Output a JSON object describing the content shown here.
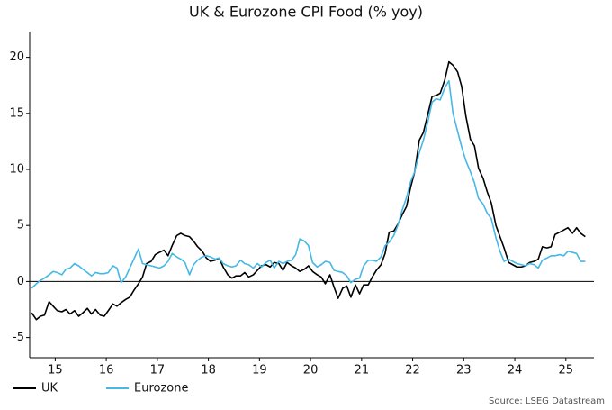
{
  "chart_data": {
    "type": "line",
    "title": "UK & Eurozone CPI Food (% yoy)",
    "source": "Source: LSEG Datastream",
    "xlim": [
      15,
      26.05
    ],
    "ylim": [
      -6.8,
      22.3
    ],
    "xticks": [
      {
        "value": 15.5,
        "label": "15"
      },
      {
        "value": 16.5,
        "label": "16"
      },
      {
        "value": 17.5,
        "label": "17"
      },
      {
        "value": 18.5,
        "label": "18"
      },
      {
        "value": 19.5,
        "label": "19"
      },
      {
        "value": 20.5,
        "label": "20"
      },
      {
        "value": 21.5,
        "label": "21"
      },
      {
        "value": 22.5,
        "label": "22"
      },
      {
        "value": 23.5,
        "label": "23"
      },
      {
        "value": 24.5,
        "label": "24"
      },
      {
        "value": 25.5,
        "label": "25"
      }
    ],
    "yticks": [
      -5,
      0,
      5,
      10,
      15,
      20
    ],
    "x": [
      15.04,
      15.13,
      15.21,
      15.29,
      15.38,
      15.46,
      15.54,
      15.63,
      15.71,
      15.79,
      15.88,
      15.96,
      16.04,
      16.13,
      16.21,
      16.29,
      16.38,
      16.46,
      16.54,
      16.63,
      16.71,
      16.79,
      16.88,
      16.96,
      17.04,
      17.13,
      17.21,
      17.29,
      17.38,
      17.46,
      17.54,
      17.63,
      17.71,
      17.79,
      17.88,
      17.96,
      18.04,
      18.13,
      18.21,
      18.29,
      18.38,
      18.46,
      18.54,
      18.63,
      18.71,
      18.79,
      18.88,
      18.96,
      19.04,
      19.13,
      19.21,
      19.29,
      19.38,
      19.46,
      19.54,
      19.63,
      19.71,
      19.79,
      19.88,
      19.96,
      20.04,
      20.13,
      20.21,
      20.29,
      20.38,
      20.46,
      20.54,
      20.63,
      20.71,
      20.79,
      20.88,
      20.96,
      21.04,
      21.13,
      21.21,
      21.29,
      21.38,
      21.46,
      21.54,
      21.63,
      21.71,
      21.79,
      21.88,
      21.96,
      22.04,
      22.13,
      22.21,
      22.29,
      22.38,
      22.46,
      22.54,
      22.63,
      22.71,
      22.79,
      22.88,
      22.96,
      23.04,
      23.13,
      23.21,
      23.29,
      23.38,
      23.46,
      23.54,
      23.63,
      23.71,
      23.79,
      23.88,
      23.96,
      24.04,
      24.13,
      24.21,
      24.29,
      24.38,
      24.46,
      24.54,
      24.63,
      24.71,
      24.79,
      24.88,
      24.96,
      25.04,
      25.13,
      25.21,
      25.29,
      25.38,
      25.46,
      25.54,
      25.63,
      25.71,
      25.79,
      25.88
    ],
    "series": [
      {
        "name": "UK",
        "color": "#000000",
        "values": [
          -2.8,
          -3.4,
          -3.1,
          -3.0,
          -1.8,
          -2.2,
          -2.6,
          -2.7,
          -2.5,
          -2.9,
          -2.6,
          -3.1,
          -2.8,
          -2.4,
          -2.9,
          -2.5,
          -3.0,
          -3.1,
          -2.6,
          -2.0,
          -2.2,
          -1.9,
          -1.6,
          -1.4,
          -0.8,
          -0.2,
          0.4,
          1.6,
          1.8,
          2.4,
          2.6,
          2.8,
          2.3,
          3.2,
          4.1,
          4.3,
          4.1,
          4.0,
          3.6,
          3.1,
          2.7,
          2.1,
          1.8,
          1.9,
          2.1,
          1.3,
          0.6,
          0.3,
          0.5,
          0.5,
          0.8,
          0.4,
          0.6,
          1.0,
          1.4,
          1.5,
          1.3,
          1.7,
          1.6,
          1.0,
          1.7,
          1.4,
          1.2,
          0.9,
          1.1,
          1.4,
          0.9,
          0.6,
          0.4,
          -0.2,
          0.6,
          -0.5,
          -1.5,
          -0.6,
          -0.4,
          -1.4,
          -0.3,
          -1.1,
          -0.3,
          -0.3,
          0.4,
          1.0,
          1.5,
          2.5,
          4.4,
          4.5,
          5.1,
          5.9,
          6.7,
          8.4,
          9.8,
          12.6,
          13.3,
          14.8,
          16.5,
          16.6,
          16.8,
          18.0,
          19.6,
          19.3,
          18.7,
          17.4,
          14.8,
          12.7,
          12.1,
          10.1,
          9.2,
          8.0,
          7.0,
          5.0,
          4.0,
          3.0,
          1.7,
          1.5,
          1.3,
          1.3,
          1.4,
          1.7,
          1.8,
          2.0,
          3.1,
          3.0,
          3.1,
          4.2,
          4.4,
          4.6,
          4.8,
          4.3,
          4.8,
          4.3,
          4.0
        ]
      },
      {
        "name": "Eurozone",
        "color": "#45b8e6",
        "values": [
          -0.6,
          -0.2,
          0.1,
          0.3,
          0.6,
          0.9,
          0.8,
          0.6,
          1.1,
          1.2,
          1.6,
          1.4,
          1.1,
          0.8,
          0.5,
          0.8,
          0.7,
          0.7,
          0.8,
          1.4,
          1.2,
          -0.1,
          0.4,
          1.2,
          2.0,
          2.9,
          1.6,
          1.5,
          1.4,
          1.3,
          1.2,
          1.4,
          1.8,
          2.5,
          2.2,
          2.0,
          1.7,
          0.6,
          1.5,
          1.9,
          2.2,
          2.3,
          2.2,
          2.0,
          2.1,
          1.6,
          1.4,
          1.3,
          1.4,
          1.9,
          1.6,
          1.5,
          1.2,
          1.6,
          1.3,
          1.7,
          1.9,
          1.2,
          1.8,
          1.6,
          1.8,
          1.9,
          2.4,
          3.8,
          3.6,
          3.2,
          1.7,
          1.3,
          1.5,
          1.8,
          1.7,
          1.0,
          0.9,
          0.8,
          0.5,
          -0.1,
          0.2,
          0.3,
          1.4,
          1.9,
          1.9,
          1.8,
          2.2,
          3.2,
          3.5,
          4.1,
          5.0,
          6.3,
          7.5,
          8.9,
          9.8,
          11.5,
          12.6,
          14.1,
          16.0,
          16.3,
          16.2,
          17.3,
          17.9,
          15.0,
          13.4,
          12.0,
          10.8,
          9.8,
          8.8,
          7.4,
          6.9,
          6.1,
          5.6,
          3.9,
          2.7,
          1.8,
          2.0,
          1.8,
          1.6,
          1.5,
          1.4,
          1.6,
          1.5,
          1.2,
          1.9,
          2.1,
          2.3,
          2.3,
          2.4,
          2.3,
          2.7,
          2.6,
          2.5,
          1.8,
          1.8
        ]
      }
    ]
  }
}
